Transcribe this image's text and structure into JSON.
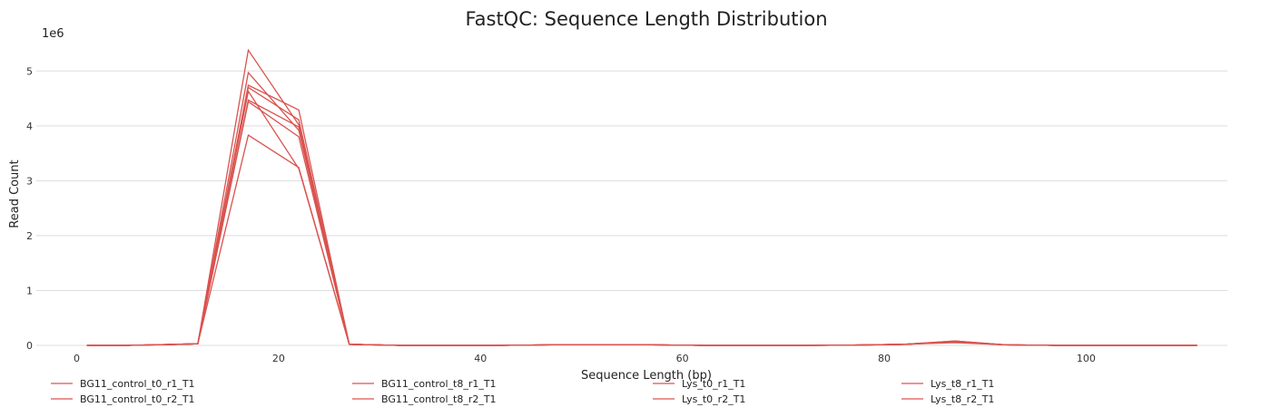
{
  "chart_data": {
    "type": "line",
    "title": "FastQC: Sequence Length Distribution",
    "xlabel": "Sequence Length (bp)",
    "ylabel": "Read Count",
    "y_offset_label": "1e6",
    "xlim": [
      -4,
      114
    ],
    "ylim": [
      0,
      5.5
    ],
    "x_ticks": [
      0,
      20,
      40,
      60,
      80,
      100
    ],
    "y_ticks": [
      0,
      1,
      2,
      3,
      4,
      5
    ],
    "y_tick_labels": [
      "0",
      "1",
      "2",
      "3",
      "4",
      "5"
    ],
    "grid": "horizontal",
    "legend_position": "bottom",
    "line_color": "#d9534f",
    "x": [
      1,
      5,
      10,
      12,
      17,
      22,
      27,
      32,
      37,
      42,
      47,
      52,
      57,
      62,
      67,
      72,
      77,
      82,
      87,
      92,
      97,
      102,
      107,
      111
    ],
    "series": [
      {
        "name": "BG11_control_t0_r1_T1",
        "values": [
          0,
          0,
          0.02,
          0.03,
          5.38,
          4.02,
          0.02,
          0,
          0,
          0,
          0.01,
          0.015,
          0.01,
          0,
          0,
          0,
          0.005,
          0.02,
          0.08,
          0.01,
          0,
          0,
          0,
          0
        ]
      },
      {
        "name": "BG11_control_t0_r2_T1",
        "values": [
          0,
          0,
          0.02,
          0.03,
          4.97,
          3.92,
          0.02,
          0,
          0,
          0,
          0.01,
          0.015,
          0.01,
          0,
          0,
          0,
          0.005,
          0.02,
          0.07,
          0.01,
          0,
          0,
          0,
          0
        ]
      },
      {
        "name": "BG11_control_t8_r1_T1",
        "values": [
          0,
          0,
          0.02,
          0.03,
          4.74,
          4.29,
          0.02,
          0,
          0,
          0,
          0.01,
          0.015,
          0.01,
          0,
          0,
          0,
          0.005,
          0.02,
          0.08,
          0.01,
          0,
          0,
          0,
          0
        ]
      },
      {
        "name": "BG11_control_t8_r2_T1",
        "values": [
          0,
          0,
          0.02,
          0.03,
          4.7,
          4.11,
          0.02,
          0,
          0,
          0,
          0.01,
          0.015,
          0.01,
          0,
          0,
          0,
          0.005,
          0.02,
          0.07,
          0.01,
          0,
          0,
          0,
          0
        ]
      },
      {
        "name": "Lys_t0_r1_T1",
        "values": [
          0,
          0,
          0.02,
          0.03,
          4.63,
          3.22,
          0.02,
          0,
          0,
          0,
          0.01,
          0.015,
          0.01,
          0,
          0,
          0,
          0.005,
          0.02,
          0.06,
          0.01,
          0,
          0,
          0,
          0
        ]
      },
      {
        "name": "Lys_t0_r2_T1",
        "values": [
          0,
          0,
          0.02,
          0.03,
          4.47,
          3.98,
          0.02,
          0,
          0,
          0,
          0.01,
          0.015,
          0.01,
          0,
          0,
          0,
          0.005,
          0.02,
          0.07,
          0.01,
          0,
          0,
          0,
          0
        ]
      },
      {
        "name": "Lys_t8_r1_T1",
        "values": [
          0,
          0,
          0.02,
          0.03,
          4.44,
          3.8,
          0.02,
          0,
          0,
          0,
          0.01,
          0.015,
          0.01,
          0,
          0,
          0,
          0.005,
          0.02,
          0.06,
          0.01,
          0,
          0,
          0,
          0
        ]
      },
      {
        "name": "Lys_t8_r2_T1",
        "values": [
          0,
          0,
          0.02,
          0.03,
          3.83,
          3.24,
          0.02,
          0,
          0,
          0,
          0.01,
          0.015,
          0.01,
          0,
          0,
          0,
          0.005,
          0.02,
          0.05,
          0.01,
          0,
          0,
          0,
          0
        ]
      }
    ]
  }
}
